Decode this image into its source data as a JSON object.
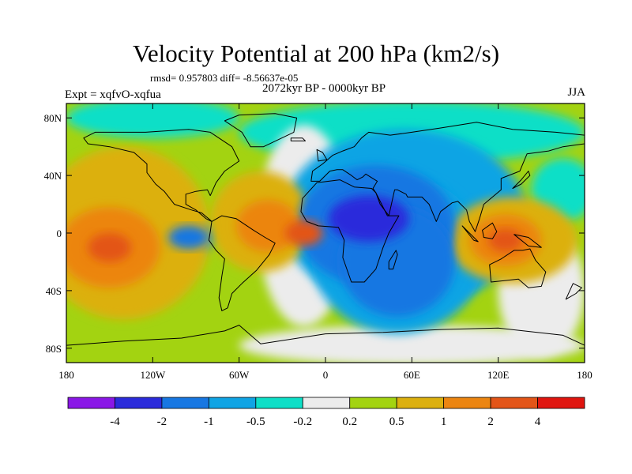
{
  "chart_data": {
    "type": "heatmap",
    "title": "Velocity Potential at 200 hPa (km2/s)",
    "stats_text": "rmsd= 0.957803 diff= -8.56637e-05",
    "left_label": "Expt = xqfvO-xqfua",
    "center_label": "2072kyr BP - 0000kyr BP",
    "right_label": "JJA",
    "x_axis": {
      "range": [
        -180,
        180
      ],
      "ticks": [
        {
          "value": -180,
          "label": "180"
        },
        {
          "value": -120,
          "label": "120W"
        },
        {
          "value": -60,
          "label": "60W"
        },
        {
          "value": 0,
          "label": "0"
        },
        {
          "value": 60,
          "label": "60E"
        },
        {
          "value": 120,
          "label": "120E"
        },
        {
          "value": 180,
          "label": "180"
        }
      ]
    },
    "y_axis": {
      "range": [
        -90,
        90
      ],
      "ticks": [
        {
          "value": 80,
          "label": "80N"
        },
        {
          "value": 40,
          "label": "40N"
        },
        {
          "value": 0,
          "label": "0"
        },
        {
          "value": -40,
          "label": "40S"
        },
        {
          "value": -80,
          "label": "80S"
        }
      ]
    },
    "colorbar": {
      "colors": [
        "#8a17e6",
        "#2b2bdb",
        "#1777e2",
        "#10a4e4",
        "#0ddfc7",
        "#ececec",
        "#a3d311",
        "#dcb00f",
        "#ec8511",
        "#e35518",
        "#e0150f"
      ],
      "labels": [
        "-4",
        "-2",
        "-1",
        "-0.5",
        "-0.2",
        "0.2",
        "0.5",
        "1",
        "2",
        "4"
      ]
    },
    "field_features": [
      {
        "region": "Africa / Indian Ocean",
        "lon": 30,
        "lat": 10,
        "value": -2.2
      },
      {
        "region": "Southern Indian Ocean",
        "lon": 55,
        "lat": -25,
        "value": -1.3
      },
      {
        "region": "Eurasia",
        "lon": 65,
        "lat": 50,
        "value": -0.7
      },
      {
        "region": "Eastern Tropical Pacific",
        "lon": -95,
        "lat": -3,
        "value": -1.1
      },
      {
        "region": "Eastern Tropical Atlantic",
        "lon": -15,
        "lat": 0,
        "value": 2.3
      },
      {
        "region": "Western Tropical Atlantic",
        "lon": -45,
        "lat": 15,
        "value": 1.2
      },
      {
        "region": "Central South Pacific",
        "lon": -150,
        "lat": -10,
        "value": 2.5
      },
      {
        "region": "Maritime Continent",
        "lon": 125,
        "lat": -5,
        "value": 1.8
      },
      {
        "region": "Western North Pacific",
        "lon": 165,
        "lat": 30,
        "value": -0.15
      },
      {
        "region": "North Atlantic",
        "lon": -35,
        "lat": 55,
        "value": 0.1
      },
      {
        "region": "Antarctica",
        "lon": 60,
        "lat": -80,
        "value": 0.05
      }
    ]
  }
}
